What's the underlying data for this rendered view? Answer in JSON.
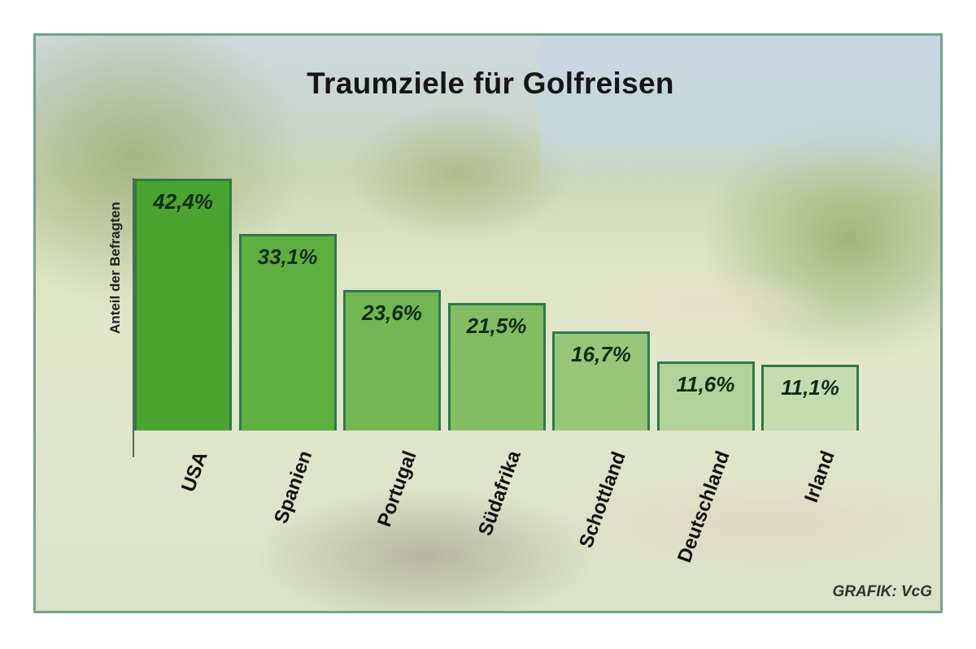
{
  "chart_data": {
    "type": "bar",
    "title": "Traumziele für Golfreisen",
    "xlabel": "",
    "ylabel": "Anteil der Befragten",
    "categories": [
      "USA",
      "Spanien",
      "Portugal",
      "Südafrika",
      "Schottland",
      "Deutschland",
      "Irland"
    ],
    "values": [
      42.4,
      33.1,
      23.6,
      21.5,
      16.7,
      11.6,
      11.1
    ],
    "value_labels": [
      "42,4%",
      "33,1%",
      "23,6%",
      "21,5%",
      "16,7%",
      "11,6%",
      "11,1%"
    ],
    "unit": "%",
    "ylim": [
      0,
      45
    ],
    "grid": false,
    "legend": null,
    "bar_colors": [
      "#4aa42f",
      "#5fae40",
      "#72b552",
      "#83bd63",
      "#97c679",
      "#b1d29a",
      "#c4dcb0"
    ],
    "source": "GRAFIK: VcG"
  },
  "title": "Traumziele für Golfreisen",
  "ylabel": "Anteil der Befragten",
  "credit": "GRAFIK: VcG"
}
